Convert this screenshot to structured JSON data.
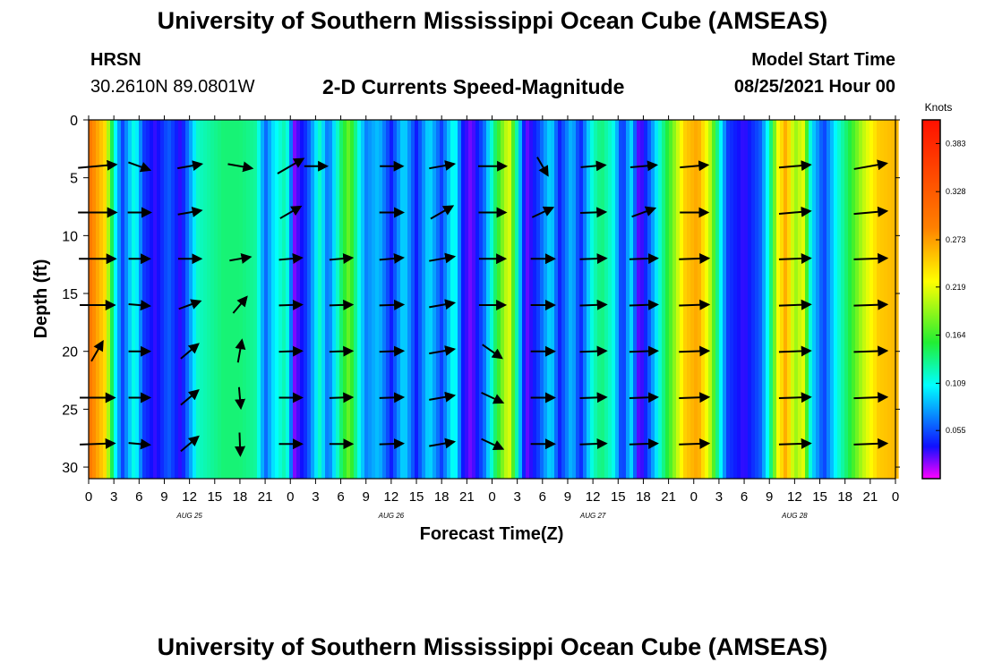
{
  "header": {
    "title": "University of Southern Mississippi Ocean Cube (AMSEAS)",
    "station": "HRSN",
    "coords": "30.2610N  89.0801W",
    "subtitle": "2-D Currents Speed-Magnitude",
    "model_start_label": "Model Start Time",
    "model_start_value": "08/25/2021 Hour 00"
  },
  "footer": {
    "title": "University of Southern Mississippi Ocean Cube (AMSEAS)"
  },
  "colors": {
    "magenta": "#ff00ff",
    "blue": "#1010ff",
    "cyan": "#00ffff",
    "green": "#22ee33",
    "yellow": "#ffff00",
    "orange": "#ff8000",
    "red": "#ff1000"
  },
  "chart_data": {
    "type": "heatmap",
    "title": "2-D Currents Speed-Magnitude",
    "xlabel": "Forecast Time(Z)",
    "ylabel": "Depth (ft)",
    "x_unit": "hours since 08/25/2021 00Z",
    "xlim": [
      0,
      96
    ],
    "ylim": [
      0,
      31
    ],
    "y_inverted": true,
    "x_tick_values": [
      0,
      3,
      6,
      9,
      12,
      15,
      18,
      21,
      24,
      27,
      30,
      33,
      36,
      39,
      42,
      45,
      48,
      51,
      54,
      57,
      60,
      63,
      66,
      69,
      72,
      75,
      78,
      81,
      84,
      87,
      90,
      93,
      96
    ],
    "x_tick_labels": [
      "0",
      "3",
      "6",
      "9",
      "12",
      "15",
      "18",
      "21",
      "0",
      "3",
      "6",
      "9",
      "12",
      "15",
      "18",
      "21",
      "0",
      "3",
      "6",
      "9",
      "12",
      "15",
      "18",
      "21",
      "0",
      "3",
      "6",
      "9",
      "12",
      "15",
      "18",
      "21",
      "0"
    ],
    "date_labels": [
      {
        "text": "AUG 25",
        "hour": 12
      },
      {
        "text": "AUG 26",
        "hour": 36
      },
      {
        "text": "AUG 27",
        "hour": 60
      },
      {
        "text": "AUG 28",
        "hour": 84
      }
    ],
    "y_tick_values": [
      0,
      5,
      10,
      15,
      20,
      25,
      30
    ],
    "y_tick_labels": [
      "0",
      "5",
      "10",
      "15",
      "20",
      "25",
      "30"
    ],
    "colorbar": {
      "unit": "Knots",
      "min": 0,
      "max": 0.41,
      "tick_values": [
        0.055,
        0.109,
        0.164,
        0.219,
        0.273,
        0.328,
        0.383
      ],
      "tick_labels": [
        "0.055",
        "0.109",
        "0.164",
        "0.219",
        "0.273",
        "0.328",
        "0.383"
      ]
    },
    "speed_by_hour": [
      {
        "hour": 0,
        "speed": 0.3
      },
      {
        "hour": 2,
        "speed": 0.24
      },
      {
        "hour": 3,
        "speed": 0.12
      },
      {
        "hour": 4,
        "speed": 0.05
      },
      {
        "hour": 5.5,
        "speed": 0.12
      },
      {
        "hour": 6.5,
        "speed": 0.05
      },
      {
        "hour": 8,
        "speed": 0.03
      },
      {
        "hour": 9.5,
        "speed": 0.06
      },
      {
        "hour": 11,
        "speed": 0.03
      },
      {
        "hour": 13,
        "speed": 0.12
      },
      {
        "hour": 14.5,
        "speed": 0.13
      },
      {
        "hour": 16,
        "speed": 0.14
      },
      {
        "hour": 18,
        "speed": 0.14
      },
      {
        "hour": 20,
        "speed": 0.13
      },
      {
        "hour": 21,
        "speed": 0.06
      },
      {
        "hour": 22,
        "speed": 0.1
      },
      {
        "hour": 23.5,
        "speed": 0.13
      },
      {
        "hour": 24.5,
        "speed": 0.02
      },
      {
        "hour": 26,
        "speed": 0.05
      },
      {
        "hour": 27.5,
        "speed": 0.12
      },
      {
        "hour": 28.5,
        "speed": 0.06
      },
      {
        "hour": 30,
        "speed": 0.14
      },
      {
        "hour": 31,
        "speed": 0.18
      },
      {
        "hour": 32,
        "speed": 0.12
      },
      {
        "hour": 33,
        "speed": 0.07
      },
      {
        "hour": 34.5,
        "speed": 0.09
      },
      {
        "hour": 36,
        "speed": 0.04
      },
      {
        "hour": 37.5,
        "speed": 0.1
      },
      {
        "hour": 39,
        "speed": 0.04
      },
      {
        "hour": 40.5,
        "speed": 0.1
      },
      {
        "hour": 42,
        "speed": 0.05
      },
      {
        "hour": 43.5,
        "speed": 0.12
      },
      {
        "hour": 44.5,
        "speed": 0.04
      },
      {
        "hour": 45.5,
        "speed": 0.02
      },
      {
        "hour": 47,
        "speed": 0.06
      },
      {
        "hour": 48.5,
        "speed": 0.15
      },
      {
        "hour": 50,
        "speed": 0.22
      },
      {
        "hour": 51,
        "speed": 0.12
      },
      {
        "hour": 52,
        "speed": 0.02
      },
      {
        "hour": 53.5,
        "speed": 0.05
      },
      {
        "hour": 55,
        "speed": 0.1
      },
      {
        "hour": 56,
        "speed": 0.04
      },
      {
        "hour": 57.5,
        "speed": 0.09
      },
      {
        "hour": 58.5,
        "speed": 0.04
      },
      {
        "hour": 60,
        "speed": 0.12
      },
      {
        "hour": 61,
        "speed": 0.14
      },
      {
        "hour": 62.5,
        "speed": 0.11
      },
      {
        "hour": 63.5,
        "speed": 0.04
      },
      {
        "hour": 64.5,
        "speed": 0.1
      },
      {
        "hour": 65.5,
        "speed": 0.02
      },
      {
        "hour": 66.5,
        "speed": 0.05
      },
      {
        "hour": 68,
        "speed": 0.12
      },
      {
        "hour": 69.5,
        "speed": 0.18
      },
      {
        "hour": 71,
        "speed": 0.25
      },
      {
        "hour": 72.5,
        "speed": 0.27
      },
      {
        "hour": 74,
        "speed": 0.2
      },
      {
        "hour": 75,
        "speed": 0.12
      },
      {
        "hour": 76,
        "speed": 0.05
      },
      {
        "hour": 78,
        "speed": 0.03
      },
      {
        "hour": 80,
        "speed": 0.06
      },
      {
        "hour": 81,
        "speed": 0.12
      },
      {
        "hour": 82,
        "speed": 0.22
      },
      {
        "hour": 83,
        "speed": 0.27
      },
      {
        "hour": 84,
        "speed": 0.19
      },
      {
        "hour": 85,
        "speed": 0.22
      },
      {
        "hour": 86,
        "speed": 0.1
      },
      {
        "hour": 87.5,
        "speed": 0.05
      },
      {
        "hour": 89,
        "speed": 0.11
      },
      {
        "hour": 90.5,
        "speed": 0.15
      },
      {
        "hour": 92,
        "speed": 0.2
      },
      {
        "hour": 94,
        "speed": 0.25
      },
      {
        "hour": 96,
        "speed": 0.26
      }
    ],
    "vector_depths": [
      4,
      8,
      12,
      16,
      20,
      24,
      28
    ],
    "current_vectors": [
      {
        "hour": 1,
        "depth": 4,
        "dir": 85,
        "speed": 0.3
      },
      {
        "hour": 6,
        "depth": 4,
        "dir": 110,
        "speed": 0.12
      },
      {
        "hour": 12,
        "depth": 4,
        "dir": 80,
        "speed": 0.14
      },
      {
        "hour": 18,
        "depth": 4,
        "dir": 100,
        "speed": 0.14
      },
      {
        "hour": 24,
        "depth": 4,
        "dir": 60,
        "speed": 0.2
      },
      {
        "hour": 27,
        "depth": 4,
        "dir": 90,
        "speed": 0.12
      },
      {
        "hour": 36,
        "depth": 4,
        "dir": 90,
        "speed": 0.12
      },
      {
        "hour": 42,
        "depth": 4,
        "dir": 80,
        "speed": 0.15
      },
      {
        "hour": 48,
        "depth": 4,
        "dir": 90,
        "speed": 0.18
      },
      {
        "hour": 54,
        "depth": 4,
        "dir": 150,
        "speed": 0.1
      },
      {
        "hour": 60,
        "depth": 4,
        "dir": 85,
        "speed": 0.14
      },
      {
        "hour": 66,
        "depth": 4,
        "dir": 85,
        "speed": 0.16
      },
      {
        "hour": 72,
        "depth": 4,
        "dir": 85,
        "speed": 0.18
      },
      {
        "hour": 84,
        "depth": 4,
        "dir": 85,
        "speed": 0.22
      },
      {
        "hour": 93,
        "depth": 4,
        "dir": 80,
        "speed": 0.24
      },
      {
        "hour": 1,
        "depth": 8,
        "dir": 90,
        "speed": 0.3
      },
      {
        "hour": 6,
        "depth": 8,
        "dir": 90,
        "speed": 0.12
      },
      {
        "hour": 12,
        "depth": 8,
        "dir": 80,
        "speed": 0.13
      },
      {
        "hour": 24,
        "depth": 8,
        "dir": 60,
        "speed": 0.13
      },
      {
        "hour": 36,
        "depth": 8,
        "dir": 90,
        "speed": 0.13
      },
      {
        "hour": 42,
        "depth": 8,
        "dir": 60,
        "speed": 0.15
      },
      {
        "hour": 48,
        "depth": 8,
        "dir": 90,
        "speed": 0.17
      },
      {
        "hour": 54,
        "depth": 8,
        "dir": 65,
        "speed": 0.12
      },
      {
        "hour": 60,
        "depth": 8,
        "dir": 88,
        "speed": 0.15
      },
      {
        "hour": 66,
        "depth": 8,
        "dir": 70,
        "speed": 0.14
      },
      {
        "hour": 72,
        "depth": 8,
        "dir": 90,
        "speed": 0.18
      },
      {
        "hour": 84,
        "depth": 8,
        "dir": 85,
        "speed": 0.22
      },
      {
        "hour": 93,
        "depth": 8,
        "dir": 85,
        "speed": 0.24
      },
      {
        "hour": 1,
        "depth": 12,
        "dir": 90,
        "speed": 0.28
      },
      {
        "hour": 6,
        "depth": 12,
        "dir": 90,
        "speed": 0.1
      },
      {
        "hour": 12,
        "depth": 12,
        "dir": 90,
        "speed": 0.12
      },
      {
        "hour": 18,
        "depth": 12,
        "dir": 80,
        "speed": 0.1
      },
      {
        "hour": 24,
        "depth": 12,
        "dir": 85,
        "speed": 0.12
      },
      {
        "hour": 30,
        "depth": 12,
        "dir": 85,
        "speed": 0.12
      },
      {
        "hour": 36,
        "depth": 12,
        "dir": 85,
        "speed": 0.13
      },
      {
        "hour": 42,
        "depth": 12,
        "dir": 80,
        "speed": 0.15
      },
      {
        "hour": 48,
        "depth": 12,
        "dir": 90,
        "speed": 0.16
      },
      {
        "hour": 54,
        "depth": 12,
        "dir": 90,
        "speed": 0.13
      },
      {
        "hour": 60,
        "depth": 12,
        "dir": 88,
        "speed": 0.16
      },
      {
        "hour": 66,
        "depth": 12,
        "dir": 88,
        "speed": 0.18
      },
      {
        "hour": 72,
        "depth": 12,
        "dir": 88,
        "speed": 0.2
      },
      {
        "hour": 84,
        "depth": 12,
        "dir": 88,
        "speed": 0.22
      },
      {
        "hour": 93,
        "depth": 12,
        "dir": 88,
        "speed": 0.24
      },
      {
        "hour": 1,
        "depth": 16,
        "dir": 90,
        "speed": 0.26
      },
      {
        "hour": 6,
        "depth": 16,
        "dir": 95,
        "speed": 0.1
      },
      {
        "hour": 12,
        "depth": 16,
        "dir": 70,
        "speed": 0.12
      },
      {
        "hour": 18,
        "depth": 16,
        "dir": 40,
        "speed": 0.1
      },
      {
        "hour": 24,
        "depth": 16,
        "dir": 88,
        "speed": 0.12
      },
      {
        "hour": 30,
        "depth": 16,
        "dir": 88,
        "speed": 0.12
      },
      {
        "hour": 36,
        "depth": 16,
        "dir": 88,
        "speed": 0.13
      },
      {
        "hour": 42,
        "depth": 16,
        "dir": 80,
        "speed": 0.15
      },
      {
        "hour": 48,
        "depth": 16,
        "dir": 90,
        "speed": 0.16
      },
      {
        "hour": 54,
        "depth": 16,
        "dir": 90,
        "speed": 0.13
      },
      {
        "hour": 60,
        "depth": 16,
        "dir": 88,
        "speed": 0.16
      },
      {
        "hour": 66,
        "depth": 16,
        "dir": 88,
        "speed": 0.18
      },
      {
        "hour": 72,
        "depth": 16,
        "dir": 88,
        "speed": 0.2
      },
      {
        "hour": 84,
        "depth": 16,
        "dir": 88,
        "speed": 0.22
      },
      {
        "hour": 93,
        "depth": 16,
        "dir": 88,
        "speed": 0.24
      },
      {
        "hour": 1,
        "depth": 20,
        "dir": 30,
        "speed": 0.12
      },
      {
        "hour": 6,
        "depth": 20,
        "dir": 90,
        "speed": 0.1
      },
      {
        "hour": 12,
        "depth": 20,
        "dir": 50,
        "speed": 0.12
      },
      {
        "hour": 18,
        "depth": 20,
        "dir": 10,
        "speed": 0.12
      },
      {
        "hour": 24,
        "depth": 20,
        "dir": 88,
        "speed": 0.12
      },
      {
        "hour": 30,
        "depth": 20,
        "dir": 88,
        "speed": 0.12
      },
      {
        "hour": 36,
        "depth": 20,
        "dir": 88,
        "speed": 0.13
      },
      {
        "hour": 42,
        "depth": 20,
        "dir": 80,
        "speed": 0.15
      },
      {
        "hour": 48,
        "depth": 20,
        "dir": 125,
        "speed": 0.13
      },
      {
        "hour": 54,
        "depth": 20,
        "dir": 90,
        "speed": 0.13
      },
      {
        "hour": 60,
        "depth": 20,
        "dir": 88,
        "speed": 0.16
      },
      {
        "hour": 66,
        "depth": 20,
        "dir": 88,
        "speed": 0.18
      },
      {
        "hour": 72,
        "depth": 20,
        "dir": 88,
        "speed": 0.2
      },
      {
        "hour": 84,
        "depth": 20,
        "dir": 88,
        "speed": 0.22
      },
      {
        "hour": 93,
        "depth": 20,
        "dir": 88,
        "speed": 0.24
      },
      {
        "hour": 1,
        "depth": 24,
        "dir": 90,
        "speed": 0.26
      },
      {
        "hour": 6,
        "depth": 24,
        "dir": 90,
        "speed": 0.1
      },
      {
        "hour": 12,
        "depth": 24,
        "dir": 50,
        "speed": 0.12
      },
      {
        "hour": 18,
        "depth": 24,
        "dir": 175,
        "speed": 0.1
      },
      {
        "hour": 24,
        "depth": 24,
        "dir": 90,
        "speed": 0.12
      },
      {
        "hour": 30,
        "depth": 24,
        "dir": 88,
        "speed": 0.12
      },
      {
        "hour": 36,
        "depth": 24,
        "dir": 88,
        "speed": 0.13
      },
      {
        "hour": 42,
        "depth": 24,
        "dir": 80,
        "speed": 0.15
      },
      {
        "hour": 48,
        "depth": 24,
        "dir": 115,
        "speed": 0.13
      },
      {
        "hour": 54,
        "depth": 24,
        "dir": 90,
        "speed": 0.13
      },
      {
        "hour": 60,
        "depth": 24,
        "dir": 88,
        "speed": 0.16
      },
      {
        "hour": 66,
        "depth": 24,
        "dir": 88,
        "speed": 0.18
      },
      {
        "hour": 72,
        "depth": 24,
        "dir": 88,
        "speed": 0.2
      },
      {
        "hour": 84,
        "depth": 24,
        "dir": 88,
        "speed": 0.22
      },
      {
        "hour": 93,
        "depth": 24,
        "dir": 88,
        "speed": 0.24
      },
      {
        "hour": 1,
        "depth": 28,
        "dir": 88,
        "speed": 0.26
      },
      {
        "hour": 6,
        "depth": 28,
        "dir": 95,
        "speed": 0.1
      },
      {
        "hour": 12,
        "depth": 28,
        "dir": 50,
        "speed": 0.12
      },
      {
        "hour": 18,
        "depth": 28,
        "dir": 178,
        "speed": 0.12
      },
      {
        "hour": 24,
        "depth": 28,
        "dir": 90,
        "speed": 0.12
      },
      {
        "hour": 30,
        "depth": 28,
        "dir": 90,
        "speed": 0.12
      },
      {
        "hour": 36,
        "depth": 28,
        "dir": 88,
        "speed": 0.13
      },
      {
        "hour": 42,
        "depth": 28,
        "dir": 80,
        "speed": 0.15
      },
      {
        "hour": 48,
        "depth": 28,
        "dir": 115,
        "speed": 0.13
      },
      {
        "hour": 54,
        "depth": 28,
        "dir": 90,
        "speed": 0.13
      },
      {
        "hour": 60,
        "depth": 28,
        "dir": 88,
        "speed": 0.16
      },
      {
        "hour": 66,
        "depth": 28,
        "dir": 88,
        "speed": 0.18
      },
      {
        "hour": 72,
        "depth": 28,
        "dir": 88,
        "speed": 0.2
      },
      {
        "hour": 84,
        "depth": 28,
        "dir": 88,
        "speed": 0.22
      },
      {
        "hour": 93,
        "depth": 28,
        "dir": 88,
        "speed": 0.24
      }
    ]
  }
}
